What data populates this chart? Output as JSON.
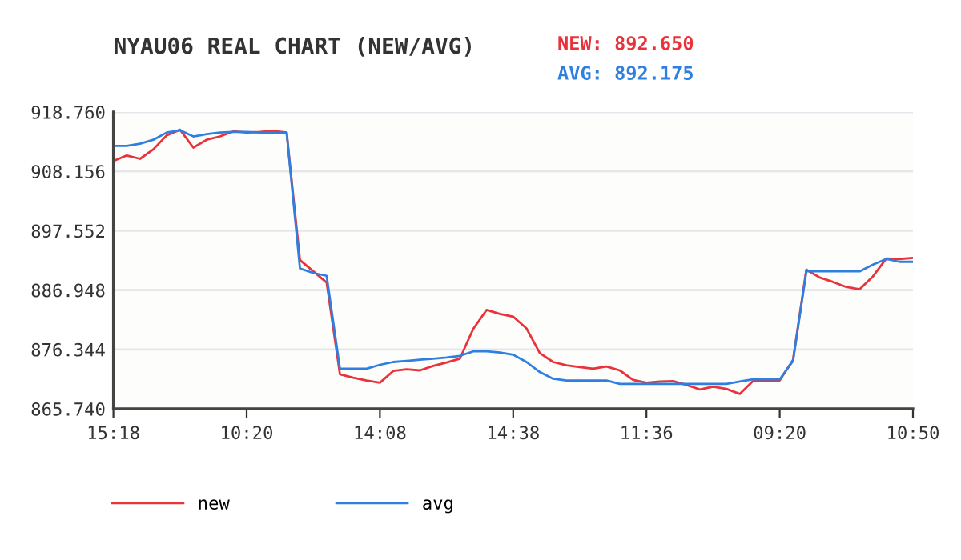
{
  "chart_data": {
    "type": "line",
    "title": "NYAU06 REAL CHART (NEW/AVG)",
    "annotations": [
      "NEW: 892.650",
      "AVG: 892.175"
    ],
    "categories": [
      "15:18",
      null,
      null,
      null,
      null,
      null,
      null,
      null,
      null,
      null,
      "10:20",
      null,
      null,
      null,
      null,
      null,
      null,
      null,
      null,
      null,
      "14:08",
      null,
      null,
      null,
      null,
      null,
      null,
      null,
      null,
      null,
      "14:38",
      null,
      null,
      null,
      null,
      null,
      null,
      null,
      null,
      null,
      "11:36",
      null,
      null,
      null,
      null,
      null,
      null,
      null,
      null,
      null,
      "09:20",
      null,
      null,
      null,
      null,
      null,
      null,
      null,
      null,
      null,
      "10:50"
    ],
    "ylim": [
      865.74,
      918.76
    ],
    "yticks": [
      {
        "value": 865.74,
        "label": "865.740"
      },
      {
        "value": 876.344,
        "label": "876.344"
      },
      {
        "value": 886.948,
        "label": "886.948"
      },
      {
        "value": 897.552,
        "label": "897.552"
      },
      {
        "value": 908.156,
        "label": "908.156"
      },
      {
        "value": 918.76,
        "label": "918.760"
      }
    ],
    "grid": "y",
    "legend": "bottom left",
    "line_style": "solid",
    "series": [
      {
        "name": "new",
        "color": "#e8333a",
        "values": [
          910.0,
          911.0,
          910.4,
          912.1,
          914.6,
          915.6,
          912.4,
          913.8,
          914.4,
          915.3,
          915.1,
          915.2,
          915.4,
          915.1,
          892.3,
          890.3,
          888.3,
          871.9,
          871.3,
          870.8,
          870.4,
          872.5,
          872.8,
          872.6,
          873.4,
          874.0,
          874.7,
          880.0,
          883.4,
          882.7,
          882.2,
          880.1,
          875.7,
          874.1,
          873.5,
          873.2,
          872.9,
          873.3,
          872.6,
          870.9,
          870.4,
          870.6,
          870.7,
          870.0,
          869.2,
          869.7,
          869.3,
          868.4,
          870.7,
          870.8,
          870.8,
          874.5,
          890.6,
          889.2,
          888.4,
          887.5,
          887.1,
          889.4,
          892.6,
          892.5,
          892.7
        ]
      },
      {
        "name": "avg",
        "color": "#2f7fe0",
        "values": [
          912.7,
          912.7,
          913.1,
          913.8,
          915.1,
          915.5,
          914.4,
          914.8,
          915.1,
          915.2,
          915.2,
          915.1,
          915.1,
          915.1,
          890.8,
          890.0,
          889.5,
          872.9,
          872.9,
          872.9,
          873.6,
          874.1,
          874.3,
          874.5,
          874.7,
          874.9,
          875.2,
          876.0,
          876.0,
          875.8,
          875.4,
          874.1,
          872.3,
          871.1,
          870.8,
          870.8,
          870.8,
          870.8,
          870.2,
          870.2,
          870.2,
          870.2,
          870.2,
          870.2,
          870.2,
          870.2,
          870.2,
          870.6,
          871.0,
          871.0,
          871.0,
          874.3,
          890.3,
          890.3,
          890.3,
          890.3,
          890.3,
          891.5,
          892.5,
          892.0,
          892.0
        ]
      }
    ]
  }
}
